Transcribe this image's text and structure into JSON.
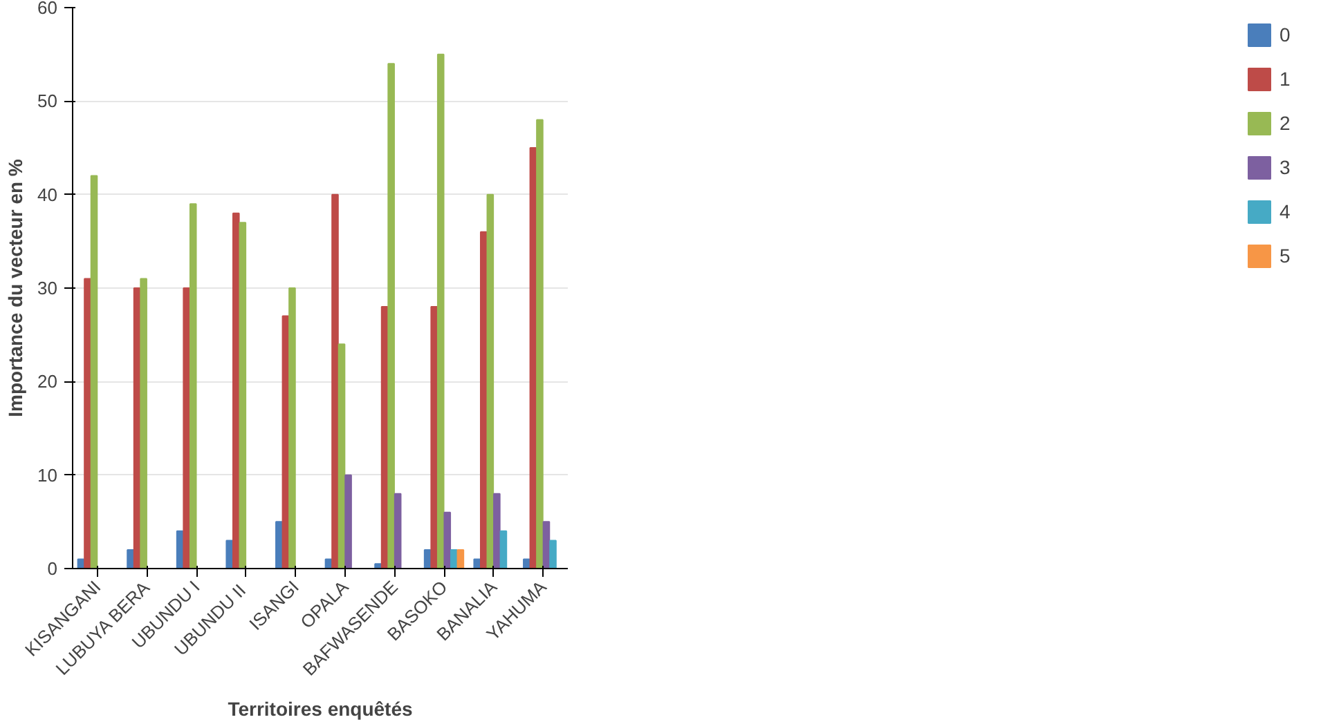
{
  "chart_data": {
    "type": "bar",
    "xlabel": "Territoires enquêtés",
    "ylabel": "Importance du vecteur en %",
    "categories": [
      "KISANGANI",
      "LUBUYA BERA",
      "UBUNDU I",
      "UBUNDU  II",
      "ISANGI",
      "OPALA",
      "BAFWASENDE",
      "BASOKO",
      "BANALIA",
      "YAHUMA"
    ],
    "series": [
      {
        "name": "0",
        "color": "#4a7ebb",
        "values": [
          1,
          2,
          4,
          3,
          5,
          1,
          0.5,
          2,
          1,
          1
        ]
      },
      {
        "name": "1",
        "color": "#be4b48",
        "values": [
          31,
          30,
          30,
          38,
          27,
          40,
          28,
          28,
          36,
          45
        ]
      },
      {
        "name": "2",
        "color": "#98b954",
        "values": [
          42,
          31,
          39,
          37,
          30,
          24,
          54,
          55,
          40,
          48
        ]
      },
      {
        "name": "3",
        "color": "#7d60a0",
        "values": [
          0,
          0,
          0,
          0,
          0,
          10,
          8,
          6,
          8,
          5
        ]
      },
      {
        "name": "4",
        "color": "#46aac5",
        "values": [
          0,
          0,
          0,
          0,
          0,
          0,
          0,
          2,
          4,
          3
        ]
      },
      {
        "name": "5",
        "color": "#f79646",
        "values": [
          0,
          0,
          0,
          0,
          0,
          0,
          0,
          2,
          0,
          0
        ]
      }
    ],
    "ylim": [
      0,
      60
    ],
    "yticks": [
      0,
      10,
      20,
      30,
      40,
      50,
      60
    ],
    "grid": "y",
    "legend": "right"
  }
}
